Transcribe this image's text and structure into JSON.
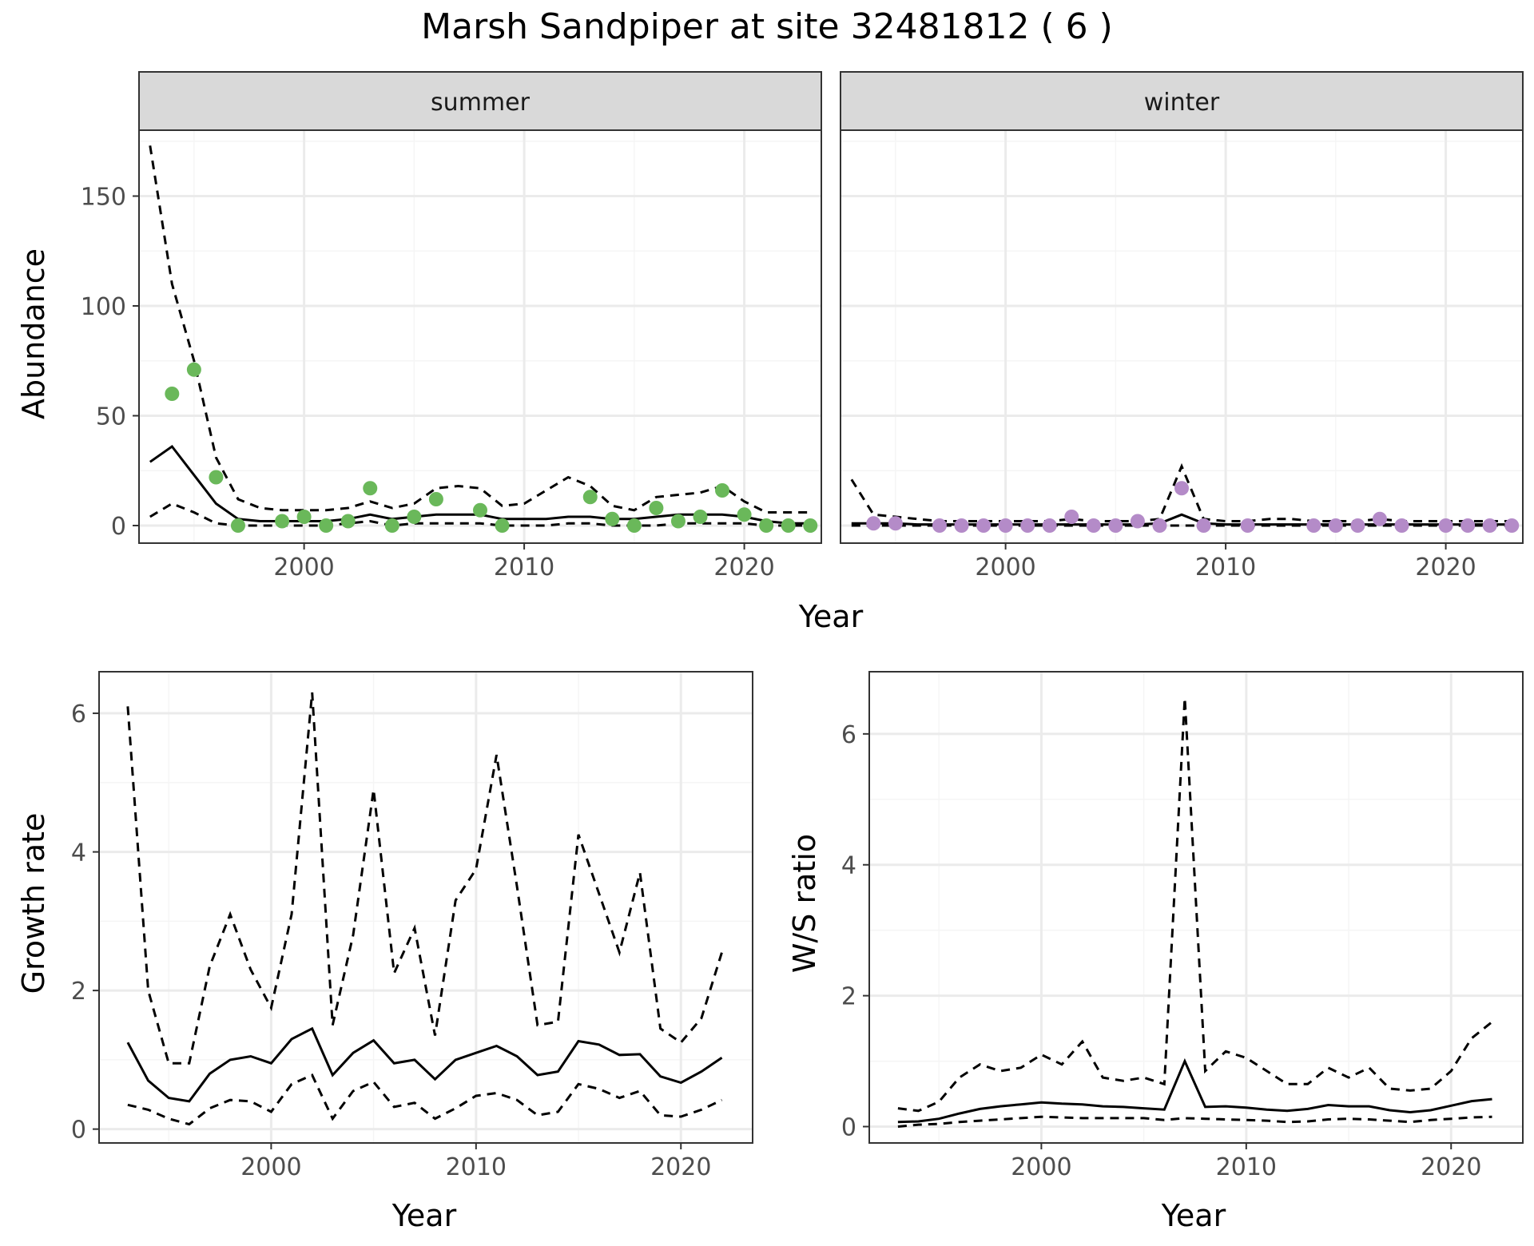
{
  "title": "Marsh Sandpiper at site 32481812 ( 6 )",
  "colors": {
    "summer_points": "#6ab85a",
    "winter_points": "#b48bc8",
    "line": "#000000",
    "strip_fill": "#d9d9d9",
    "grid_major": "#ebebeb",
    "grid_minor": "#f5f5f5",
    "panel_border": "#333333",
    "tick_text": "#4d4d4d"
  },
  "chart_data": [
    {
      "id": "abundance",
      "type": "line",
      "facets": [
        "summer",
        "winter"
      ],
      "xlabel": "Year",
      "ylabel": "Abundance",
      "xlim": [
        1992.5,
        2023.5
      ],
      "ylim": [
        -8,
        180
      ],
      "xticks": [
        2000,
        2010,
        2020
      ],
      "yticks": [
        0,
        50,
        100,
        150
      ],
      "grid": true,
      "panels": [
        {
          "facet": "summer",
          "x": [
            1993,
            1994,
            1995,
            1996,
            1997,
            1998,
            1999,
            2000,
            2001,
            2002,
            2003,
            2004,
            2005,
            2006,
            2007,
            2008,
            2009,
            2010,
            2011,
            2012,
            2013,
            2014,
            2015,
            2016,
            2017,
            2018,
            2019,
            2020,
            2021,
            2022,
            2023
          ],
          "mean": [
            29,
            36,
            23,
            10,
            3,
            2,
            2,
            2,
            2,
            3,
            5,
            3,
            4,
            5,
            5,
            5,
            3,
            3,
            3,
            4,
            4,
            3,
            3,
            4,
            5,
            5,
            5,
            4,
            2,
            1,
            1
          ],
          "upper": [
            173,
            110,
            75,
            31,
            12,
            8,
            7,
            7,
            7,
            8,
            11,
            8,
            10,
            17,
            18,
            17,
            9,
            10,
            16,
            22,
            18,
            9,
            7,
            13,
            14,
            15,
            18,
            11,
            6,
            6,
            6
          ],
          "lower": [
            4,
            10,
            6,
            1,
            0,
            0,
            0,
            0,
            0,
            1,
            2,
            0,
            1,
            1,
            1,
            1,
            0,
            0,
            0,
            1,
            1,
            0,
            0,
            0,
            1,
            1,
            1,
            1,
            0,
            0,
            0
          ],
          "points_x": [
            1994,
            1995,
            1996,
            1997,
            1999,
            2000,
            2001,
            2002,
            2003,
            2004,
            2005,
            2006,
            2008,
            2009,
            2013,
            2014,
            2015,
            2016,
            2017,
            2018,
            2019,
            2020,
            2021,
            2022,
            2023
          ],
          "points_y": [
            60,
            71,
            22,
            0,
            2,
            4,
            0,
            2,
            17,
            0,
            4,
            12,
            7,
            0,
            13,
            3,
            0,
            8,
            2,
            4,
            16,
            5,
            0,
            0,
            0
          ]
        },
        {
          "facet": "winter",
          "x": [
            1993,
            1994,
            1995,
            1996,
            1997,
            1998,
            1999,
            2000,
            2001,
            2002,
            2003,
            2004,
            2005,
            2006,
            2007,
            2008,
            2009,
            2010,
            2011,
            2012,
            2013,
            2014,
            2015,
            2016,
            2017,
            2018,
            2019,
            2020,
            2021,
            2022,
            2023
          ],
          "mean": [
            1,
            1,
            1,
            0.5,
            0.5,
            0.5,
            0.5,
            0.5,
            0.5,
            0.5,
            0.5,
            0.5,
            0.5,
            0.5,
            1,
            5,
            1,
            0.5,
            0.5,
            0.5,
            0.5,
            0.5,
            0.5,
            0.5,
            0.5,
            0.5,
            0.5,
            0.5,
            0.5,
            0.5,
            0.5
          ],
          "upper": [
            21,
            5,
            4,
            3,
            2,
            2,
            2,
            2,
            2,
            2,
            3,
            2,
            2,
            2,
            3,
            27,
            3,
            2,
            2,
            3,
            3,
            2,
            2,
            2,
            3,
            2,
            2,
            2,
            2,
            2,
            2
          ],
          "lower": [
            0,
            0,
            0,
            0,
            0,
            0,
            0,
            0,
            0,
            0,
            0,
            0,
            0,
            0,
            0,
            0,
            0,
            0,
            0,
            0,
            0,
            0,
            0,
            0,
            0,
            0,
            0,
            0,
            0,
            0,
            0
          ],
          "points_x": [
            1994,
            1995,
            1997,
            1998,
            1999,
            2000,
            2001,
            2002,
            2003,
            2004,
            2005,
            2006,
            2007,
            2008,
            2009,
            2011,
            2014,
            2015,
            2016,
            2017,
            2018,
            2020,
            2021,
            2022,
            2023
          ],
          "points_y": [
            1,
            1,
            0,
            0,
            0,
            0,
            0,
            0,
            4,
            0,
            0,
            2,
            0,
            17,
            0,
            0,
            0,
            0,
            0,
            3,
            0,
            0,
            0,
            0,
            0
          ]
        }
      ]
    },
    {
      "id": "growth",
      "type": "line",
      "xlabel": "Year",
      "ylabel": "Growth rate",
      "xlim": [
        1991.6,
        2023.5
      ],
      "ylim": [
        -0.2,
        6.6
      ],
      "xticks": [
        2000,
        2010,
        2020
      ],
      "yticks": [
        0,
        2,
        4,
        6
      ],
      "grid": true,
      "x": [
        1993,
        1994,
        1995,
        1996,
        1997,
        1998,
        1999,
        2000,
        2001,
        2002,
        2003,
        2004,
        2005,
        2006,
        2007,
        2008,
        2009,
        2010,
        2011,
        2012,
        2013,
        2014,
        2015,
        2016,
        2017,
        2018,
        2019,
        2020,
        2021,
        2022
      ],
      "mean": [
        1.25,
        0.7,
        0.45,
        0.4,
        0.8,
        1.0,
        1.05,
        0.95,
        1.3,
        1.45,
        0.78,
        1.1,
        1.28,
        0.95,
        1.0,
        0.72,
        1.0,
        1.1,
        1.2,
        1.05,
        0.78,
        0.83,
        1.27,
        1.22,
        1.07,
        1.08,
        0.76,
        0.67,
        0.83,
        1.03
      ],
      "upper": [
        6.1,
        2.0,
        0.95,
        0.95,
        2.35,
        3.1,
        2.3,
        1.75,
        3.1,
        6.3,
        1.5,
        2.8,
        4.9,
        2.25,
        2.9,
        1.35,
        3.3,
        3.75,
        5.4,
        3.5,
        1.5,
        1.55,
        4.25,
        3.4,
        2.55,
        3.7,
        1.45,
        1.25,
        1.6,
        2.55
      ],
      "lower": [
        0.35,
        0.28,
        0.15,
        0.07,
        0.3,
        0.42,
        0.4,
        0.25,
        0.65,
        0.78,
        0.15,
        0.55,
        0.68,
        0.32,
        0.38,
        0.15,
        0.3,
        0.48,
        0.52,
        0.42,
        0.2,
        0.25,
        0.65,
        0.58,
        0.45,
        0.55,
        0.2,
        0.18,
        0.28,
        0.42
      ]
    },
    {
      "id": "ratio",
      "type": "line",
      "xlabel": "Year",
      "ylabel": "W/S ratio",
      "xlim": [
        1991.6,
        2023.5
      ],
      "ylim": [
        -0.25,
        6.95
      ],
      "xticks": [
        2000,
        2010,
        2020
      ],
      "yticks": [
        0,
        2,
        4,
        6
      ],
      "grid": true,
      "x": [
        1993,
        1994,
        1995,
        1996,
        1997,
        1998,
        1999,
        2000,
        2001,
        2002,
        2003,
        2004,
        2005,
        2006,
        2007,
        2008,
        2009,
        2010,
        2011,
        2012,
        2013,
        2014,
        2015,
        2016,
        2017,
        2018,
        2019,
        2020,
        2021,
        2022
      ],
      "mean": [
        0.07,
        0.08,
        0.12,
        0.2,
        0.27,
        0.31,
        0.34,
        0.37,
        0.35,
        0.34,
        0.31,
        0.3,
        0.28,
        0.26,
        1.0,
        0.3,
        0.31,
        0.29,
        0.26,
        0.24,
        0.27,
        0.33,
        0.31,
        0.31,
        0.25,
        0.22,
        0.25,
        0.32,
        0.39,
        0.42
      ],
      "upper": [
        0.28,
        0.24,
        0.38,
        0.75,
        0.95,
        0.85,
        0.9,
        1.1,
        0.95,
        1.3,
        0.75,
        0.7,
        0.75,
        0.65,
        6.55,
        0.85,
        1.15,
        1.05,
        0.85,
        0.65,
        0.65,
        0.9,
        0.75,
        0.9,
        0.58,
        0.55,
        0.58,
        0.85,
        1.35,
        1.6
      ],
      "lower": [
        0.0,
        0.03,
        0.04,
        0.07,
        0.09,
        0.11,
        0.13,
        0.15,
        0.14,
        0.13,
        0.13,
        0.13,
        0.13,
        0.1,
        0.13,
        0.12,
        0.11,
        0.1,
        0.09,
        0.07,
        0.08,
        0.11,
        0.12,
        0.11,
        0.09,
        0.07,
        0.1,
        0.12,
        0.14,
        0.15
      ]
    }
  ]
}
